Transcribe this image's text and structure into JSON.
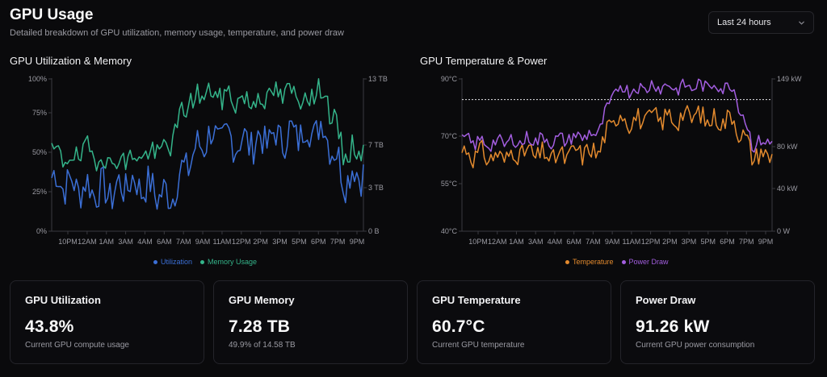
{
  "header": {
    "title": "GPU Usage",
    "subtitle": "Detailed breakdown of GPU utilization, memory usage, temperature, and power draw",
    "range_select": {
      "value": "Last 24 hours",
      "icon": "chevron-down-icon"
    }
  },
  "charts": {
    "left": {
      "title": "GPU Utilization & Memory",
      "x_ticks": [
        "10PM",
        "12AM",
        "1AM",
        "3AM",
        "4AM",
        "6AM",
        "7AM",
        "9AM",
        "11AM",
        "12PM",
        "2PM",
        "3PM",
        "5PM",
        "6PM",
        "7PM",
        "9PM"
      ],
      "y_left_ticks": [
        "100%",
        "75%",
        "50%",
        "25%",
        "0%"
      ],
      "y_right_ticks": [
        "13 TB",
        "7 TB",
        "3 TB",
        "0 B"
      ],
      "legend": [
        {
          "label": "Utilization",
          "color": "#3b6fd6"
        },
        {
          "label": "Memory Usage",
          "color": "#34b48a"
        }
      ]
    },
    "right": {
      "title": "GPU Temperature & Power",
      "x_ticks": [
        "10PM",
        "12AM",
        "1AM",
        "3AM",
        "4AM",
        "6AM",
        "7AM",
        "9AM",
        "11AM",
        "12PM",
        "2PM",
        "3PM",
        "5PM",
        "6PM",
        "7PM",
        "9PM"
      ],
      "y_left_ticks": [
        "90°C",
        "70°C",
        "55°C",
        "40°C"
      ],
      "y_right_ticks": [
        "149 kW",
        "80 kW",
        "40 kW",
        "0 W"
      ],
      "legend": [
        {
          "label": "Temperature",
          "color": "#e38a2e"
        },
        {
          "label": "Power Draw",
          "color": "#a35ee0"
        }
      ]
    }
  },
  "chart_data": [
    {
      "type": "line",
      "title": "GPU Utilization & Memory",
      "x": [
        "9PM",
        "10PM",
        "12AM",
        "1AM",
        "3AM",
        "4AM",
        "6AM",
        "7AM",
        "9AM",
        "11AM",
        "12PM",
        "2PM",
        "3PM",
        "5PM",
        "6PM",
        "7PM",
        "9PM"
      ],
      "series": [
        {
          "name": "Utilization",
          "axis": "left",
          "unit": "%",
          "values": [
            35,
            30,
            28,
            25,
            32,
            28,
            22,
            45,
            62,
            60,
            58,
            60,
            62,
            65,
            68,
            35,
            40
          ]
        },
        {
          "name": "Memory Usage",
          "axis": "left",
          "unit": "%",
          "values": [
            50,
            48,
            52,
            45,
            48,
            50,
            55,
            85,
            90,
            88,
            85,
            88,
            90,
            88,
            92,
            50,
            55
          ]
        }
      ],
      "ylim_left": [
        0,
        100
      ],
      "ylim_right_label_range": [
        "0 B",
        "13 TB"
      ],
      "grid": false,
      "legend": "bottom"
    },
    {
      "type": "line",
      "title": "GPU Temperature & Power",
      "x": [
        "9PM",
        "10PM",
        "12AM",
        "1AM",
        "3AM",
        "4AM",
        "6AM",
        "7AM",
        "9AM",
        "11AM",
        "12PM",
        "2PM",
        "3PM",
        "5PM",
        "6PM",
        "7PM",
        "9PM"
      ],
      "series": [
        {
          "name": "Temperature",
          "axis": "left",
          "unit": "°C",
          "values": [
            66,
            65,
            64,
            66,
            65,
            64,
            66,
            66,
            78,
            76,
            77,
            77,
            78,
            76,
            77,
            65,
            65
          ]
        },
        {
          "name": "Power Draw",
          "axis": "right",
          "unit": "kW",
          "values": [
            88,
            86,
            86,
            88,
            90,
            88,
            92,
            95,
            140,
            138,
            142,
            140,
            141,
            142,
            140,
            85,
            88
          ]
        }
      ],
      "threshold": {
        "axis": "left",
        "value": 83
      },
      "ylim_left": [
        40,
        90
      ],
      "ylim_right": [
        0,
        149
      ],
      "grid": false,
      "legend": "bottom"
    }
  ],
  "cards": [
    {
      "title": "GPU Utilization",
      "value": "43.8%",
      "sub": "Current GPU compute usage"
    },
    {
      "title": "GPU Memory",
      "value": "7.28 TB",
      "sub": "49.9% of 14.58 TB"
    },
    {
      "title": "GPU Temperature",
      "value": "60.7°C",
      "sub": "Current GPU temperature"
    },
    {
      "title": "Power Draw",
      "value": "91.26 kW",
      "sub": "Current GPU power consumption"
    }
  ]
}
